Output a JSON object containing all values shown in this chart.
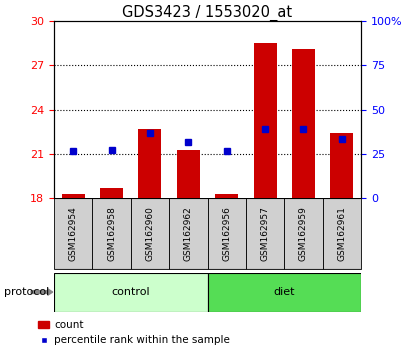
{
  "title": "GDS3423 / 1553020_at",
  "samples": [
    "GSM162954",
    "GSM162958",
    "GSM162960",
    "GSM162962",
    "GSM162956",
    "GSM162957",
    "GSM162959",
    "GSM162961"
  ],
  "red_values": [
    18.3,
    18.7,
    22.7,
    21.3,
    18.3,
    28.5,
    28.1,
    22.4
  ],
  "blue_values": [
    21.2,
    21.3,
    22.4,
    21.8,
    21.2,
    22.7,
    22.7,
    22.0
  ],
  "base": 18,
  "ylim_left": [
    18,
    30
  ],
  "ylim_right": [
    0,
    100
  ],
  "yticks_left": [
    18,
    21,
    24,
    27,
    30
  ],
  "yticks_right": [
    0,
    25,
    50,
    75,
    100
  ],
  "ytick_labels_right": [
    "0",
    "25",
    "50",
    "75",
    "100%"
  ],
  "bar_color": "#cc0000",
  "blue_color": "#0000cc",
  "bar_width": 0.6,
  "blue_marker_size": 4,
  "background_color": "#ffffff",
  "ctrl_color": "#ccffcc",
  "diet_color": "#55dd55",
  "title_fontsize": 10.5,
  "tick_fontsize": 8,
  "sample_fontsize": 6.5,
  "legend_fontsize": 7.5,
  "proto_fontsize": 8
}
